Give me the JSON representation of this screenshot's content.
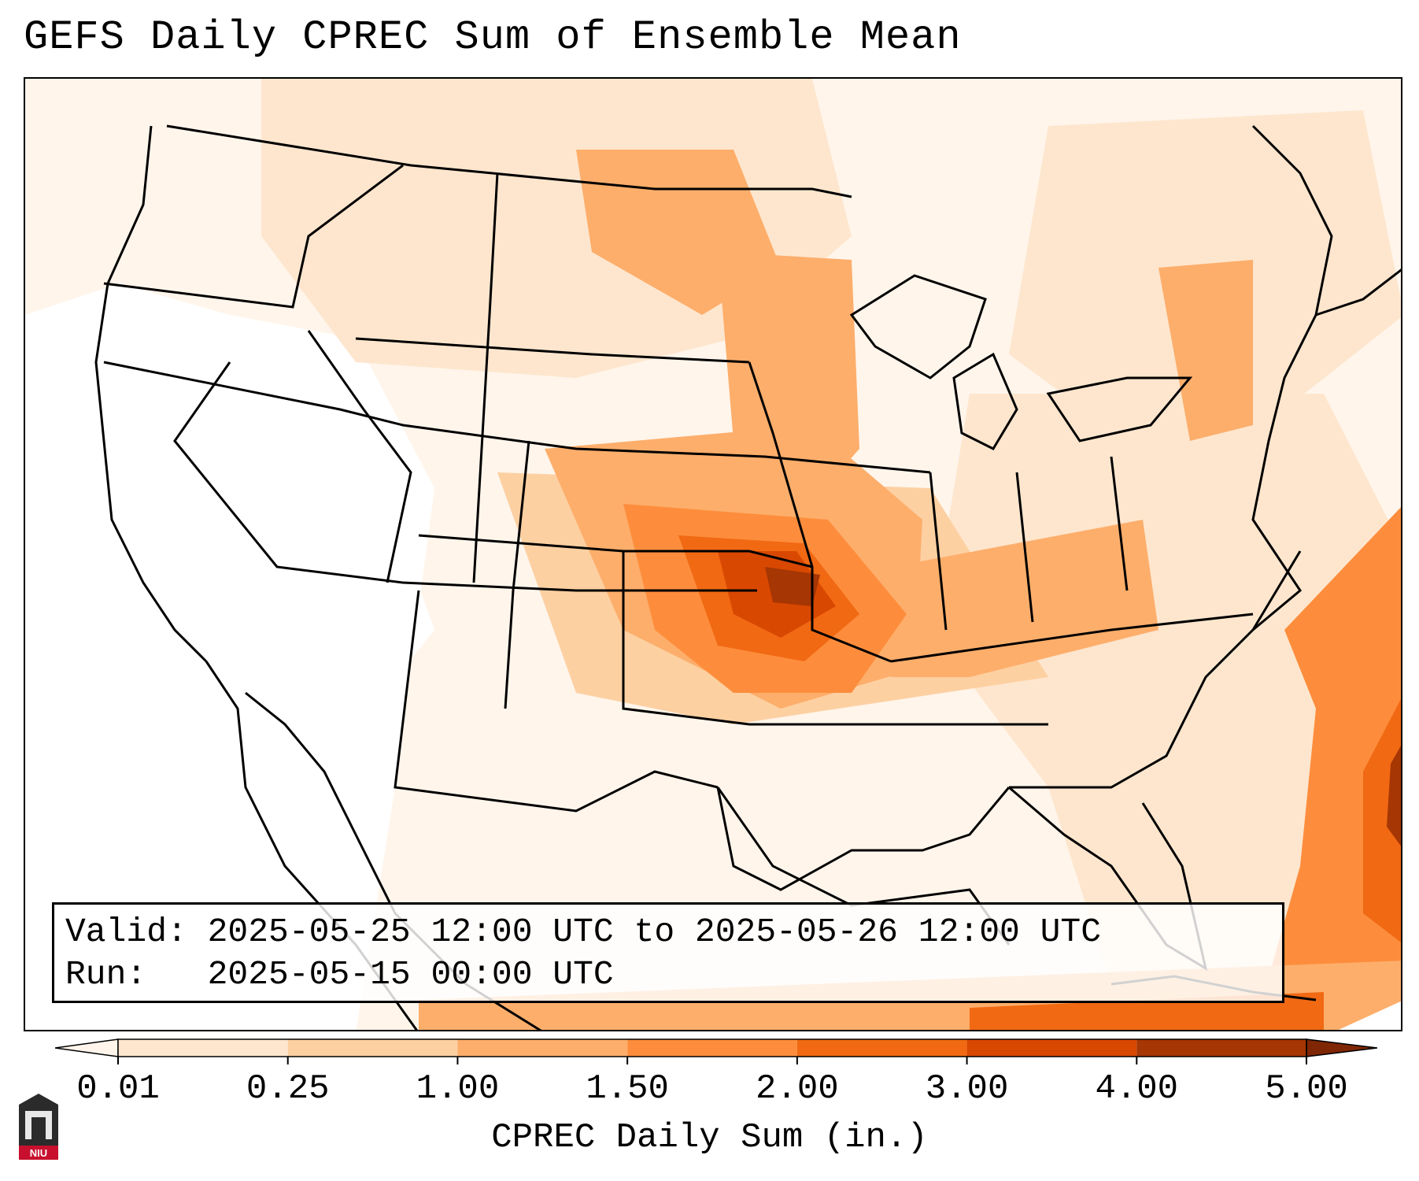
{
  "title": "GEFS Daily CPREC Sum of Ensemble Mean",
  "info": {
    "valid": "Valid: 2025-05-25 12:00 UTC to 2025-05-26 12:00 UTC",
    "run": "Run:   2025-05-15 00:00 UTC"
  },
  "colorbar": {
    "label": "CPREC Daily Sum (in.)",
    "ticks": [
      "0.01",
      "0.25",
      "1.00",
      "1.50",
      "2.00",
      "3.00",
      "4.00",
      "5.00"
    ],
    "colors": [
      "#fff5eb",
      "#fee6ce",
      "#fdd0a2",
      "#fdae6b",
      "#fd8d3c",
      "#f16913",
      "#d94801",
      "#a63603",
      "#7f2704"
    ]
  },
  "logo": {
    "text": "NIU",
    "icon": "niu-logo-icon"
  }
}
